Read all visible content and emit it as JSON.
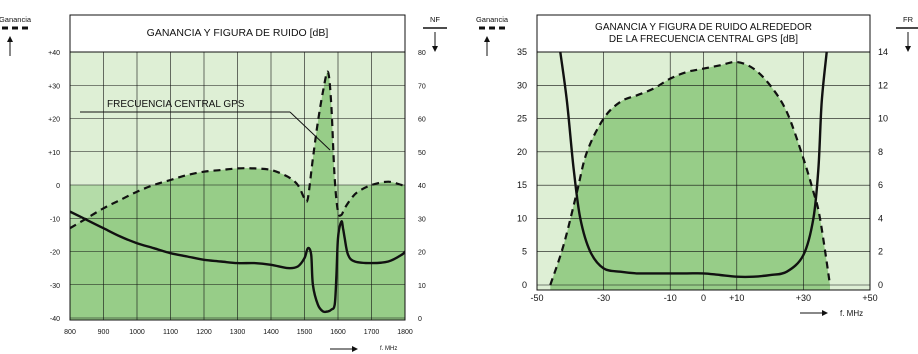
{
  "chart_data": [
    {
      "type": "line",
      "title": "GANANCIA Y FIGURA DE RUIDO [dB]",
      "annotation": "FRECUENCIA CENTRAL GPS",
      "xlabel": "f. MHz",
      "left_axis_label": "Ganancia",
      "right_axis_label": "NF",
      "x_ticks": [
        "800",
        "900",
        "1000",
        "1100",
        "1200",
        "1300",
        "1400",
        "1500",
        "1600",
        "1700",
        "1800"
      ],
      "y_left_ticks": [
        "-40",
        "-30",
        "-20",
        "-10",
        "0",
        "+10",
        "+20",
        "+30",
        "+40"
      ],
      "y_right_ticks": [
        "0",
        "10",
        "20",
        "30",
        "40",
        "50",
        "60",
        "70",
        "80"
      ],
      "xlim": [
        800,
        1800
      ],
      "ylim_left": [
        -40,
        40
      ],
      "ylim_right": [
        0,
        80
      ],
      "grid": true,
      "series": [
        {
          "role": "gain",
          "axis": "left",
          "style": "dashed",
          "x": [
            800,
            850,
            900,
            950,
            1000,
            1050,
            1100,
            1150,
            1200,
            1250,
            1300,
            1350,
            1400,
            1450,
            1480,
            1500,
            1510,
            1525,
            1540,
            1555,
            1570,
            1580,
            1590,
            1600,
            1610,
            1620,
            1640,
            1660,
            1700,
            1750,
            1790,
            1800
          ],
          "y": [
            -13,
            -10,
            -7,
            -4.5,
            -2,
            0,
            1.5,
            3,
            4,
            4.5,
            5,
            5,
            4.5,
            2.5,
            0,
            -4,
            -4,
            8,
            19,
            28,
            34,
            24,
            2,
            -8,
            -9,
            -7,
            -4,
            -2,
            0,
            1,
            0,
            0
          ]
        },
        {
          "role": "noise_figure",
          "axis": "right",
          "style": "solid",
          "x": [
            800,
            850,
            900,
            950,
            1000,
            1050,
            1100,
            1150,
            1200,
            1250,
            1300,
            1350,
            1400,
            1450,
            1480,
            1500,
            1510,
            1520,
            1525,
            1540,
            1555,
            1570,
            1580,
            1590,
            1595,
            1600,
            1610,
            1615,
            1620,
            1630,
            1650,
            1700,
            1750,
            1790,
            1800
          ],
          "y": [
            32,
            29.5,
            27,
            24.5,
            22.5,
            21,
            19.5,
            18.5,
            17.5,
            17,
            16.5,
            16.5,
            16,
            15,
            15.5,
            18,
            21,
            19,
            10,
            4,
            2,
            2,
            2.5,
            4,
            12,
            24,
            29,
            27,
            24,
            19,
            17,
            16.5,
            17,
            19,
            20
          ]
        }
      ]
    },
    {
      "type": "line",
      "title": "GANANCIA Y FIGURA DE RUIDO ALREDEDOR DE LA FRECUENCIA CENTRAL GPS [dB]",
      "title_lines": [
        "GANANCIA Y FIGURA DE RUIDO ALREDEDOR",
        "DE LA FRECUENCIA CENTRAL GPS [dB]"
      ],
      "xlabel": "f. MHz",
      "left_axis_label": "Ganancia",
      "right_axis_label": "FR",
      "x_ticks": [
        "-50",
        "-30",
        "-10",
        "0",
        "+10",
        "+30",
        "+50"
      ],
      "y_left_ticks": [
        "0",
        "5",
        "10",
        "15",
        "20",
        "25",
        "30",
        "35"
      ],
      "y_right_ticks": [
        "0",
        "2",
        "4",
        "6",
        "8",
        "10",
        "12",
        "14"
      ],
      "xlim": [
        -50,
        50
      ],
      "ylim_left": [
        0,
        35
      ],
      "ylim_right": [
        0,
        14
      ],
      "grid": true,
      "series": [
        {
          "role": "gain",
          "axis": "left",
          "style": "dashed",
          "x": [
            -46,
            -42,
            -38,
            -35,
            -30,
            -25,
            -20,
            -15,
            -10,
            -5,
            0,
            5,
            10,
            15,
            20,
            25,
            30,
            33,
            35,
            38
          ],
          "y": [
            0,
            6,
            14,
            20,
            25,
            27.5,
            28.5,
            29.5,
            31,
            32,
            32.5,
            33,
            33.5,
            32.5,
            30,
            26,
            19,
            14,
            10,
            0
          ]
        },
        {
          "role": "noise_figure",
          "axis": "right",
          "style": "solid",
          "x": [
            -43,
            -41,
            -39,
            -37,
            -34,
            -30,
            -25,
            -20,
            -15,
            -10,
            -5,
            0,
            5,
            10,
            15,
            20,
            25,
            30,
            33,
            34.5,
            35.5,
            37
          ],
          "y": [
            14,
            11,
            7,
            4,
            2,
            1,
            0.8,
            0.7,
            0.7,
            0.7,
            0.7,
            0.7,
            0.6,
            0.5,
            0.5,
            0.6,
            0.8,
            1.8,
            4,
            7,
            11,
            14
          ]
        }
      ]
    }
  ]
}
